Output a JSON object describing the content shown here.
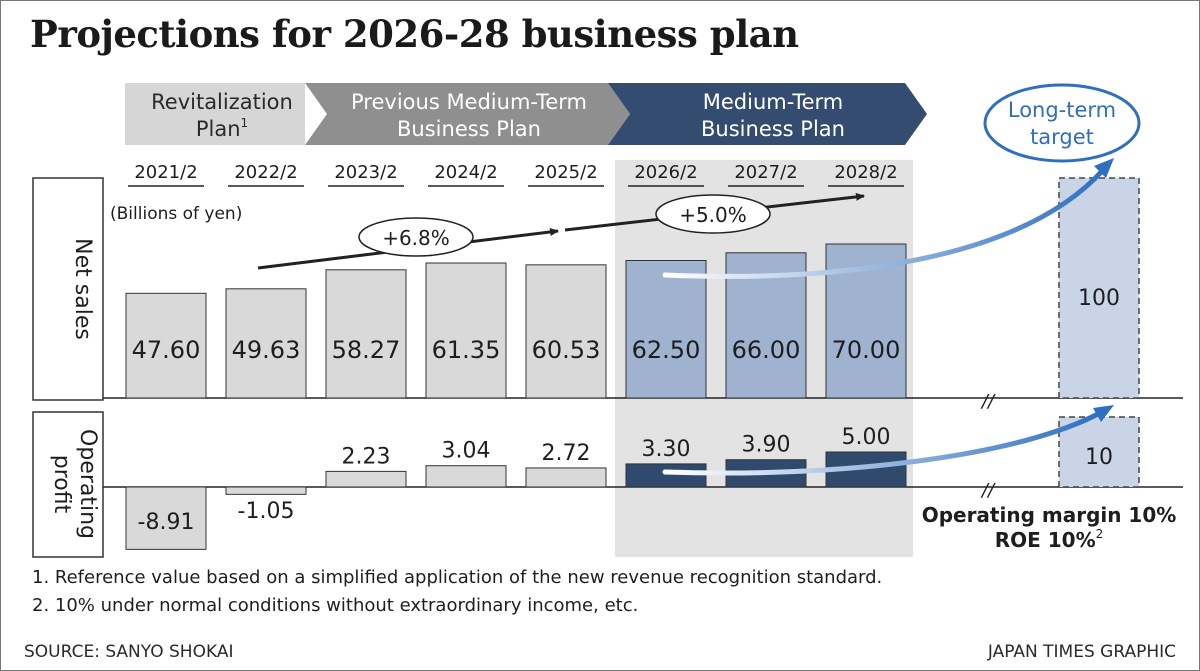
{
  "title": "Projections for 2026-28 business plan",
  "notes": [
    "1. Reference value based on a simplified application of the new revenue recognition standard.",
    "2. 10% under normal conditions without extraordinary income, etc."
  ],
  "source": "SOURCE: SANYO SHOKAI",
  "credit": "JAPAN TIMES GRAPHIC",
  "colors": {
    "past_bar": "#d9d9d9",
    "plan_net_sales": "#9fb3d1",
    "plan_operating_profit": "#2f4a6c",
    "target_bar": "#c9d5e6",
    "plan_band": "#e3e3e3",
    "arrow_blue": "#2f6fc0"
  },
  "chart_data": {
    "type": "bar",
    "unit": "(Billions of yen)",
    "categories": [
      "2021/2",
      "2022/2",
      "2023/2",
      "2024/2",
      "2025/2",
      "2026/2",
      "2027/2",
      "2028/2"
    ],
    "phases": [
      {
        "label_lines": [
          "Revitalization",
          "Plan"
        ],
        "note_mark": "1",
        "categories": [
          "2021/2",
          "2022/2"
        ]
      },
      {
        "label_lines": [
          "Previous Medium-Term",
          "Business Plan"
        ],
        "categories": [
          "2023/2",
          "2024/2",
          "2025/2"
        ]
      },
      {
        "label_lines": [
          "Medium-Term",
          "Business Plan"
        ],
        "categories": [
          "2026/2",
          "2027/2",
          "2028/2"
        ]
      }
    ],
    "series": [
      {
        "name": "Net sales",
        "values": [
          47.6,
          49.63,
          58.27,
          61.35,
          60.53,
          62.5,
          66.0,
          70.0
        ],
        "labels": [
          "47.60",
          "49.63",
          "58.27",
          "61.35",
          "60.53",
          "62.50",
          "66.00",
          "70.00"
        ]
      },
      {
        "name_lines": [
          "Operating",
          "profit"
        ],
        "values": [
          -8.91,
          -1.05,
          2.23,
          3.04,
          2.72,
          3.3,
          3.9,
          5.0
        ],
        "labels": [
          "-8.91",
          "-1.05",
          "2.23",
          "3.04",
          "2.72",
          "3.30",
          "3.90",
          "5.00"
        ]
      }
    ],
    "growth_annotations": [
      {
        "label": "+6.8%",
        "from": "2022/2",
        "to": "2025/2"
      },
      {
        "label": "+5.0%",
        "from": "2025/2",
        "to": "2028/2"
      }
    ],
    "long_term_target": {
      "label_lines": [
        "Long-term",
        "target"
      ],
      "net_sales": 100,
      "operating_profit": 10,
      "net_sales_label": "100",
      "operating_profit_label": "10",
      "operating_margin": "Operating margin 10%",
      "roe": "ROE 10%",
      "roe_note_mark": "2"
    },
    "axis_break_mark": "//"
  }
}
